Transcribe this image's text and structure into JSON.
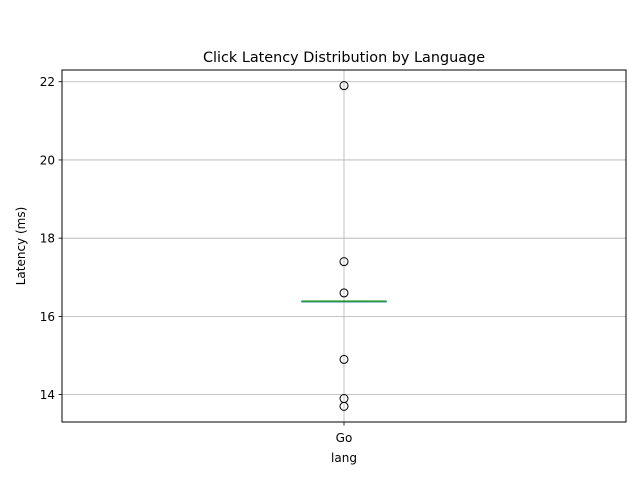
{
  "chart_data": {
    "type": "box",
    "title": "Click Latency Distribution by Language",
    "xlabel": "lang",
    "ylabel": "Latency (ms)",
    "categories": [
      "Go"
    ],
    "ylim": [
      13.3,
      22.3
    ],
    "yticks": [
      14,
      16,
      18,
      20,
      22
    ],
    "grid": true,
    "boxes": [
      {
        "category": "Go",
        "q1": 16.39,
        "median": 16.39,
        "q3": 16.39,
        "whisker_low": 16.39,
        "whisker_high": 16.39,
        "fliers": [
          21.9,
          17.4,
          16.6,
          14.9,
          13.9,
          13.7
        ]
      }
    ],
    "colors": {
      "median": "#2ca02c",
      "box": "#1f77b4",
      "grid": "#b0b0b0",
      "flier_edge": "#000000"
    }
  }
}
